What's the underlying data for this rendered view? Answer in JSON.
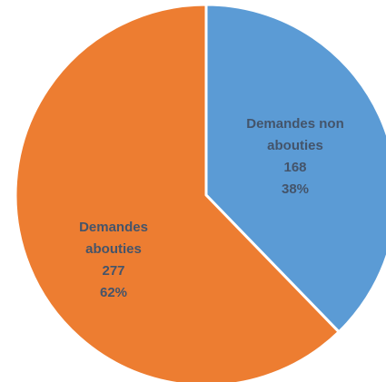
{
  "chart_data": {
    "type": "pie",
    "title": "",
    "slices": [
      {
        "label_lines": [
          "Demandes non",
          "abouties"
        ],
        "value": 168,
        "value_text": "168",
        "percent_text": "38%",
        "color": "#5B9BD5",
        "label_color": "#44546A"
      },
      {
        "label_lines": [
          "Demandes",
          "abouties"
        ],
        "value": 277,
        "value_text": "277",
        "percent_text": "62%",
        "color": "#ED7D31",
        "label_color": "#44546A"
      }
    ],
    "legend": false,
    "start_angle": "12 o'clock",
    "direction": "clockwise",
    "slice_border_color": "#FFFFFF"
  }
}
